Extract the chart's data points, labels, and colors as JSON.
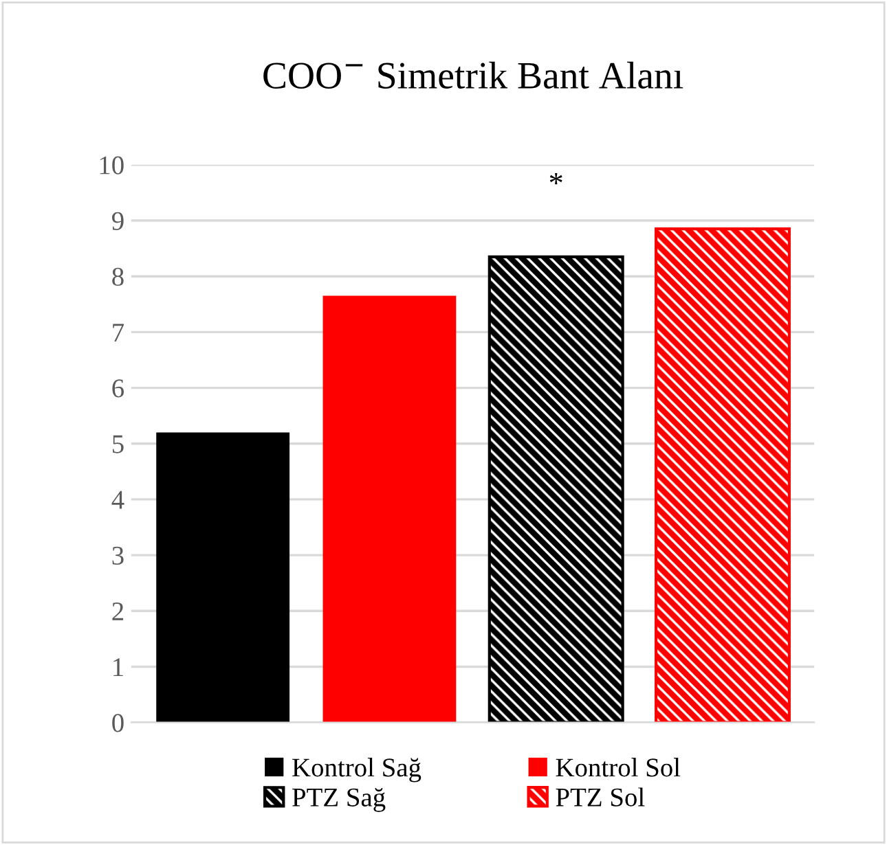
{
  "chart_data": {
    "type": "bar",
    "title": "COO$^{−}$ Simetrik Bant Alanı",
    "categories": [
      null,
      null,
      null,
      null
    ],
    "series": [
      {
        "name": "Kontrol Sağ",
        "color": "#000000",
        "values": [
          5.2,
          null,
          null,
          null
        ]
      },
      {
        "name": "Kontrol Sol",
        "color": "#ff0000",
        "values": [
          null,
          7.65,
          null,
          null
        ]
      },
      {
        "name": "PTZ Sağ",
        "color": "#000000",
        "values": [
          null,
          null,
          8.35,
          null
        ],
        "value_labels": [
          null,
          null,
          "*",
          null
        ]
      },
      {
        "name": "PTZ Sol",
        "color": "#ff0000",
        "values": [
          null,
          null,
          null,
          8.85
        ]
      }
    ],
    "ylim": [
      0,
      10
    ],
    "yticks": [
      0,
      1,
      2,
      3,
      4,
      5,
      6,
      7,
      8,
      9,
      10
    ],
    "grid": "y",
    "legend": "bottom"
  }
}
